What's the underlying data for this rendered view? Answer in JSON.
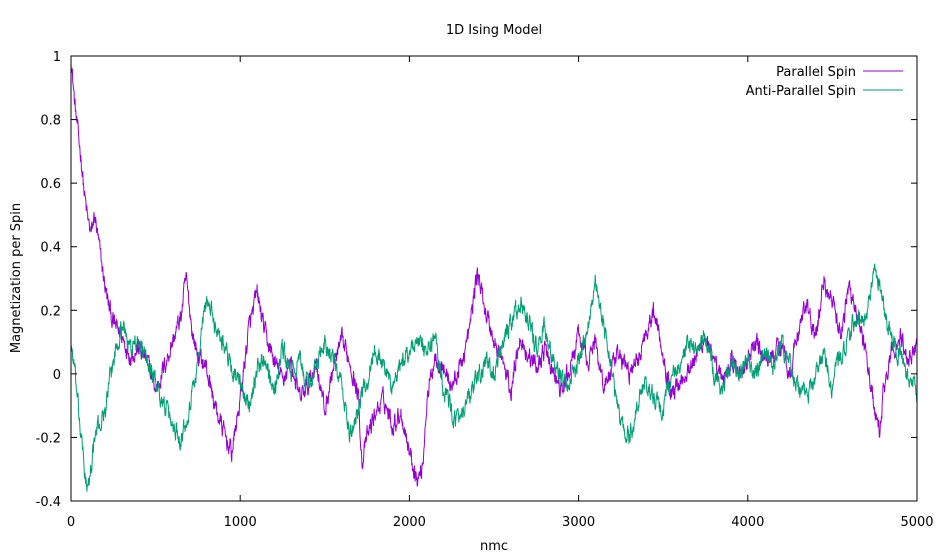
{
  "chart_data": {
    "type": "line",
    "title": "1D Ising Model",
    "xlabel": "nmc",
    "ylabel": "Magnetization per Spin",
    "xlim": [
      0,
      5000
    ],
    "ylim": [
      -0.4,
      1
    ],
    "x_ticks": [
      0,
      1000,
      2000,
      3000,
      4000,
      5000
    ],
    "y_ticks": [
      -0.4,
      -0.2,
      0,
      0.2,
      0.4,
      0.6,
      0.8,
      1
    ],
    "y_tick_labels": [
      "-0.4",
      "-0.2",
      "0",
      "0.2",
      "0.4",
      "0.6",
      "0.8",
      "1"
    ],
    "grid": false,
    "legend_position": "top-right",
    "series": [
      {
        "name": "Parallel Spin",
        "color": "#9400d3",
        "points": [
          [
            0,
            1.0
          ],
          [
            20,
            0.86
          ],
          [
            40,
            0.76
          ],
          [
            60,
            0.68
          ],
          [
            80,
            0.56
          ],
          [
            100,
            0.48
          ],
          [
            120,
            0.44
          ],
          [
            140,
            0.5
          ],
          [
            160,
            0.42
          ],
          [
            180,
            0.35
          ],
          [
            200,
            0.28
          ],
          [
            220,
            0.22
          ],
          [
            250,
            0.16
          ],
          [
            300,
            0.12
          ],
          [
            350,
            0.06
          ],
          [
            400,
            0.08
          ],
          [
            450,
            0.04
          ],
          [
            500,
            -0.05
          ],
          [
            550,
            0.02
          ],
          [
            600,
            0.1
          ],
          [
            650,
            0.18
          ],
          [
            680,
            0.3
          ],
          [
            720,
            0.12
          ],
          [
            750,
            0.06
          ],
          [
            800,
            0.02
          ],
          [
            850,
            -0.1
          ],
          [
            900,
            -0.18
          ],
          [
            950,
            -0.25
          ],
          [
            1000,
            -0.08
          ],
          [
            1050,
            0.14
          ],
          [
            1100,
            0.25
          ],
          [
            1150,
            0.12
          ],
          [
            1200,
            0.04
          ],
          [
            1250,
            -0.02
          ],
          [
            1300,
            0.04
          ],
          [
            1350,
            -0.08
          ],
          [
            1400,
            -0.04
          ],
          [
            1450,
            0.04
          ],
          [
            1500,
            -0.12
          ],
          [
            1550,
            0.02
          ],
          [
            1600,
            0.1
          ],
          [
            1650,
            0.04
          ],
          [
            1700,
            -0.08
          ],
          [
            1720,
            -0.28
          ],
          [
            1750,
            -0.2
          ],
          [
            1800,
            -0.12
          ],
          [
            1850,
            -0.08
          ],
          [
            1900,
            -0.16
          ],
          [
            1950,
            -0.12
          ],
          [
            2000,
            -0.24
          ],
          [
            2050,
            -0.34
          ],
          [
            2080,
            -0.28
          ],
          [
            2100,
            -0.1
          ],
          [
            2150,
            0.06
          ],
          [
            2200,
            0.02
          ],
          [
            2250,
            -0.04
          ],
          [
            2300,
            0.02
          ],
          [
            2350,
            0.12
          ],
          [
            2400,
            0.32
          ],
          [
            2450,
            0.2
          ],
          [
            2500,
            0.1
          ],
          [
            2550,
            0.04
          ],
          [
            2600,
            -0.06
          ],
          [
            2650,
            0.12
          ],
          [
            2700,
            0.06
          ],
          [
            2750,
            0.02
          ],
          [
            2800,
            0.08
          ],
          [
            2850,
            0.0
          ],
          [
            2900,
            -0.06
          ],
          [
            2950,
            0.02
          ],
          [
            3000,
            0.12
          ],
          [
            3050,
            0.04
          ],
          [
            3100,
            0.1
          ],
          [
            3150,
            -0.04
          ],
          [
            3200,
            0.02
          ],
          [
            3250,
            0.06
          ],
          [
            3300,
            0.0
          ],
          [
            3350,
            0.04
          ],
          [
            3400,
            0.14
          ],
          [
            3450,
            0.2
          ],
          [
            3500,
            0.06
          ],
          [
            3550,
            -0.06
          ],
          [
            3600,
            -0.02
          ],
          [
            3650,
            0.02
          ],
          [
            3700,
            0.06
          ],
          [
            3750,
            0.12
          ],
          [
            3800,
            0.02
          ],
          [
            3850,
            -0.02
          ],
          [
            3900,
            0.04
          ],
          [
            3950,
            0.0
          ],
          [
            4000,
            0.04
          ],
          [
            4050,
            0.1
          ],
          [
            4100,
            0.04
          ],
          [
            4150,
            0.06
          ],
          [
            4200,
            0.1
          ],
          [
            4250,
            0.0
          ],
          [
            4300,
            0.14
          ],
          [
            4350,
            0.22
          ],
          [
            4400,
            0.1
          ],
          [
            4450,
            0.3
          ],
          [
            4500,
            0.22
          ],
          [
            4550,
            0.12
          ],
          [
            4600,
            0.28
          ],
          [
            4650,
            0.18
          ],
          [
            4700,
            0.06
          ],
          [
            4750,
            -0.12
          ],
          [
            4780,
            -0.2
          ],
          [
            4800,
            -0.06
          ],
          [
            4850,
            0.06
          ],
          [
            4900,
            0.12
          ],
          [
            4950,
            0.04
          ],
          [
            5000,
            0.1
          ]
        ]
      },
      {
        "name": "Anti-Parallel Spin",
        "color": "#009e73",
        "points": [
          [
            0,
            0.1
          ],
          [
            20,
            0.02
          ],
          [
            40,
            -0.1
          ],
          [
            60,
            -0.2
          ],
          [
            80,
            -0.3
          ],
          [
            100,
            -0.38
          ],
          [
            120,
            -0.28
          ],
          [
            150,
            -0.18
          ],
          [
            200,
            -0.12
          ],
          [
            250,
            0.04
          ],
          [
            300,
            0.16
          ],
          [
            350,
            0.08
          ],
          [
            400,
            0.1
          ],
          [
            450,
            0.04
          ],
          [
            500,
            -0.02
          ],
          [
            550,
            -0.1
          ],
          [
            600,
            -0.16
          ],
          [
            650,
            -0.2
          ],
          [
            700,
            -0.1
          ],
          [
            750,
            0.04
          ],
          [
            800,
            0.24
          ],
          [
            850,
            0.16
          ],
          [
            900,
            0.1
          ],
          [
            950,
            0.02
          ],
          [
            1000,
            -0.04
          ],
          [
            1050,
            -0.1
          ],
          [
            1100,
            0.02
          ],
          [
            1150,
            0.06
          ],
          [
            1200,
            -0.06
          ],
          [
            1250,
            0.08
          ],
          [
            1300,
            0.0
          ],
          [
            1350,
            0.04
          ],
          [
            1400,
            -0.04
          ],
          [
            1450,
            0.02
          ],
          [
            1500,
            0.1
          ],
          [
            1550,
            0.04
          ],
          [
            1600,
            -0.04
          ],
          [
            1650,
            -0.2
          ],
          [
            1700,
            -0.1
          ],
          [
            1750,
            -0.02
          ],
          [
            1800,
            0.08
          ],
          [
            1850,
            0.02
          ],
          [
            1900,
            -0.04
          ],
          [
            1950,
            0.02
          ],
          [
            2000,
            0.08
          ],
          [
            2050,
            0.1
          ],
          [
            2100,
            0.06
          ],
          [
            2150,
            0.12
          ],
          [
            2200,
            -0.04
          ],
          [
            2250,
            -0.12
          ],
          [
            2300,
            -0.16
          ],
          [
            2350,
            -0.08
          ],
          [
            2400,
            -0.02
          ],
          [
            2450,
            0.04
          ],
          [
            2500,
            0.0
          ],
          [
            2550,
            0.08
          ],
          [
            2600,
            0.16
          ],
          [
            2650,
            0.22
          ],
          [
            2700,
            0.18
          ],
          [
            2750,
            0.08
          ],
          [
            2800,
            0.14
          ],
          [
            2850,
            0.04
          ],
          [
            2900,
            -0.04
          ],
          [
            2950,
            -0.02
          ],
          [
            3000,
            0.04
          ],
          [
            3050,
            0.14
          ],
          [
            3100,
            0.3
          ],
          [
            3150,
            0.14
          ],
          [
            3200,
            0.0
          ],
          [
            3250,
            -0.16
          ],
          [
            3300,
            -0.2
          ],
          [
            3350,
            -0.1
          ],
          [
            3400,
            -0.02
          ],
          [
            3450,
            -0.08
          ],
          [
            3500,
            -0.12
          ],
          [
            3550,
            0.0
          ],
          [
            3600,
            0.02
          ],
          [
            3650,
            0.1
          ],
          [
            3700,
            0.06
          ],
          [
            3750,
            0.12
          ],
          [
            3800,
            0.0
          ],
          [
            3850,
            -0.06
          ],
          [
            3900,
            0.04
          ],
          [
            3950,
            0.0
          ],
          [
            4000,
            0.04
          ],
          [
            4050,
            0.0
          ],
          [
            4100,
            0.06
          ],
          [
            4150,
            0.02
          ],
          [
            4200,
            0.1
          ],
          [
            4250,
            0.02
          ],
          [
            4300,
            -0.04
          ],
          [
            4350,
            -0.08
          ],
          [
            4400,
            0.0
          ],
          [
            4450,
            0.06
          ],
          [
            4500,
            -0.04
          ],
          [
            4550,
            0.06
          ],
          [
            4600,
            0.12
          ],
          [
            4650,
            0.2
          ],
          [
            4700,
            0.16
          ],
          [
            4750,
            0.34
          ],
          [
            4800,
            0.22
          ],
          [
            4850,
            0.1
          ],
          [
            4900,
            0.06
          ],
          [
            4950,
            -0.02
          ],
          [
            5000,
            -0.06
          ]
        ]
      }
    ]
  }
}
